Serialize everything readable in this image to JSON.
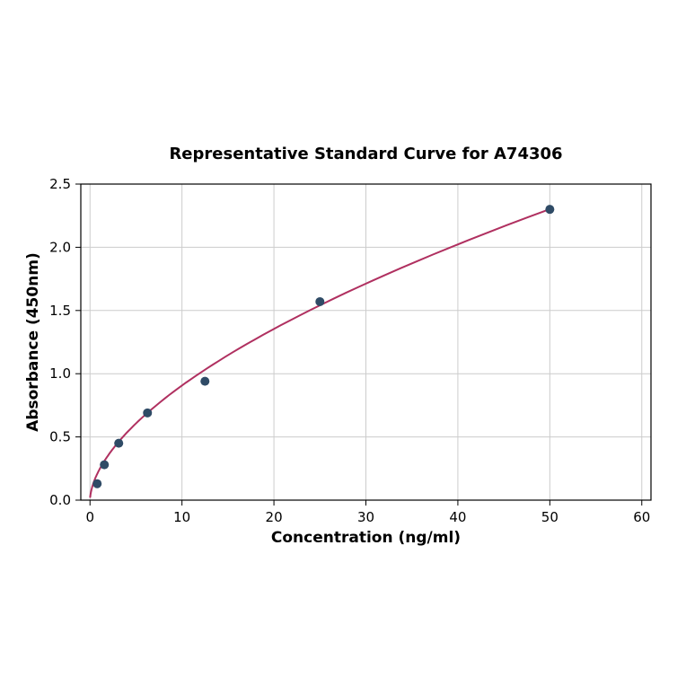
{
  "page": {
    "background": "#ffffff"
  },
  "chart_data": {
    "type": "scatter",
    "title": "Representative Standard Curve for A74306",
    "xlabel": "Concentration (ng/ml)",
    "ylabel": "Absorbance (450nm)",
    "xlim": [
      -1,
      61
    ],
    "ylim": [
      0,
      2.5
    ],
    "x_ticks": [
      0,
      10,
      20,
      30,
      40,
      50,
      60
    ],
    "x_tick_labels": [
      "0",
      "10",
      "20",
      "30",
      "40",
      "50",
      "60"
    ],
    "y_ticks": [
      0,
      0.5,
      1.0,
      1.5,
      2.0,
      2.5
    ],
    "y_tick_labels": [
      "0.0",
      "0.5",
      "1.0",
      "1.5",
      "2.0",
      "2.5"
    ],
    "grid": true,
    "legend": "none",
    "points": {
      "x": [
        0.78,
        1.56,
        3.125,
        6.25,
        12.5,
        25,
        50
      ],
      "y": [
        0.13,
        0.28,
        0.45,
        0.69,
        0.94,
        1.57,
        2.3
      ]
    },
    "fit_curve": {
      "model": "power",
      "a": 0.239,
      "b": 0.579,
      "x_start": 0.02,
      "x_end": 50
    },
    "colors": {
      "point": "#2f4b66",
      "curve": "#b03060",
      "grid": "#cccccc",
      "axis": "#000000",
      "text": "#000000"
    }
  }
}
